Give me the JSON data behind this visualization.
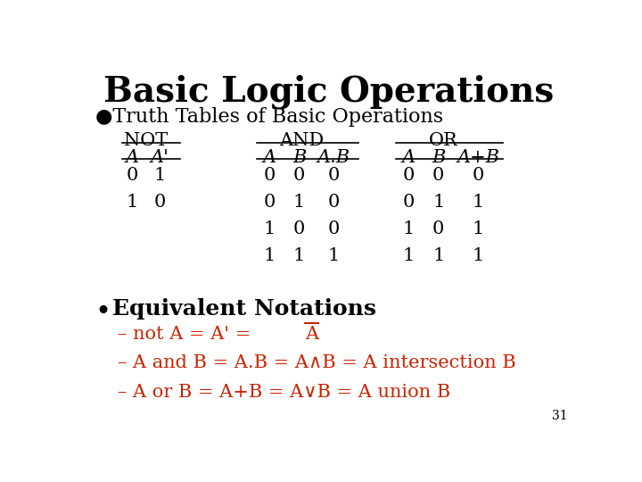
{
  "title": "Basic Logic Operations",
  "bg_color": "#ffffff",
  "title_color": "#000000",
  "title_fontsize": 28,
  "bullet1_text": "●Truth Tables of Basic Operations",
  "bullet1_color": "#000000",
  "bullet1_fontsize": 16,
  "not_header": "NOT",
  "not_cols": [
    "A",
    "A'"
  ],
  "not_rows": [
    [
      "0",
      "1"
    ],
    [
      "1",
      "0"
    ]
  ],
  "and_header": "AND",
  "and_cols": [
    "A",
    "B",
    "A.B"
  ],
  "and_rows": [
    [
      "0",
      "0",
      "0"
    ],
    [
      "0",
      "1",
      "0"
    ],
    [
      "1",
      "0",
      "0"
    ],
    [
      "1",
      "1",
      "1"
    ]
  ],
  "or_header": "OR",
  "or_cols": [
    "A",
    "B",
    "A+B"
  ],
  "or_rows": [
    [
      "0",
      "0",
      "0"
    ],
    [
      "0",
      "1",
      "1"
    ],
    [
      "1",
      "0",
      "1"
    ],
    [
      "1",
      "1",
      "1"
    ]
  ],
  "bullet2_text": "Equivalent Notations",
  "bullet2_fontsize": 18,
  "bullet2_color": "#000000",
  "eq_color": "#cc2200",
  "eq_fontsize": 15,
  "page_num": "31",
  "table_color": "#000000",
  "table_fontsize": 15
}
